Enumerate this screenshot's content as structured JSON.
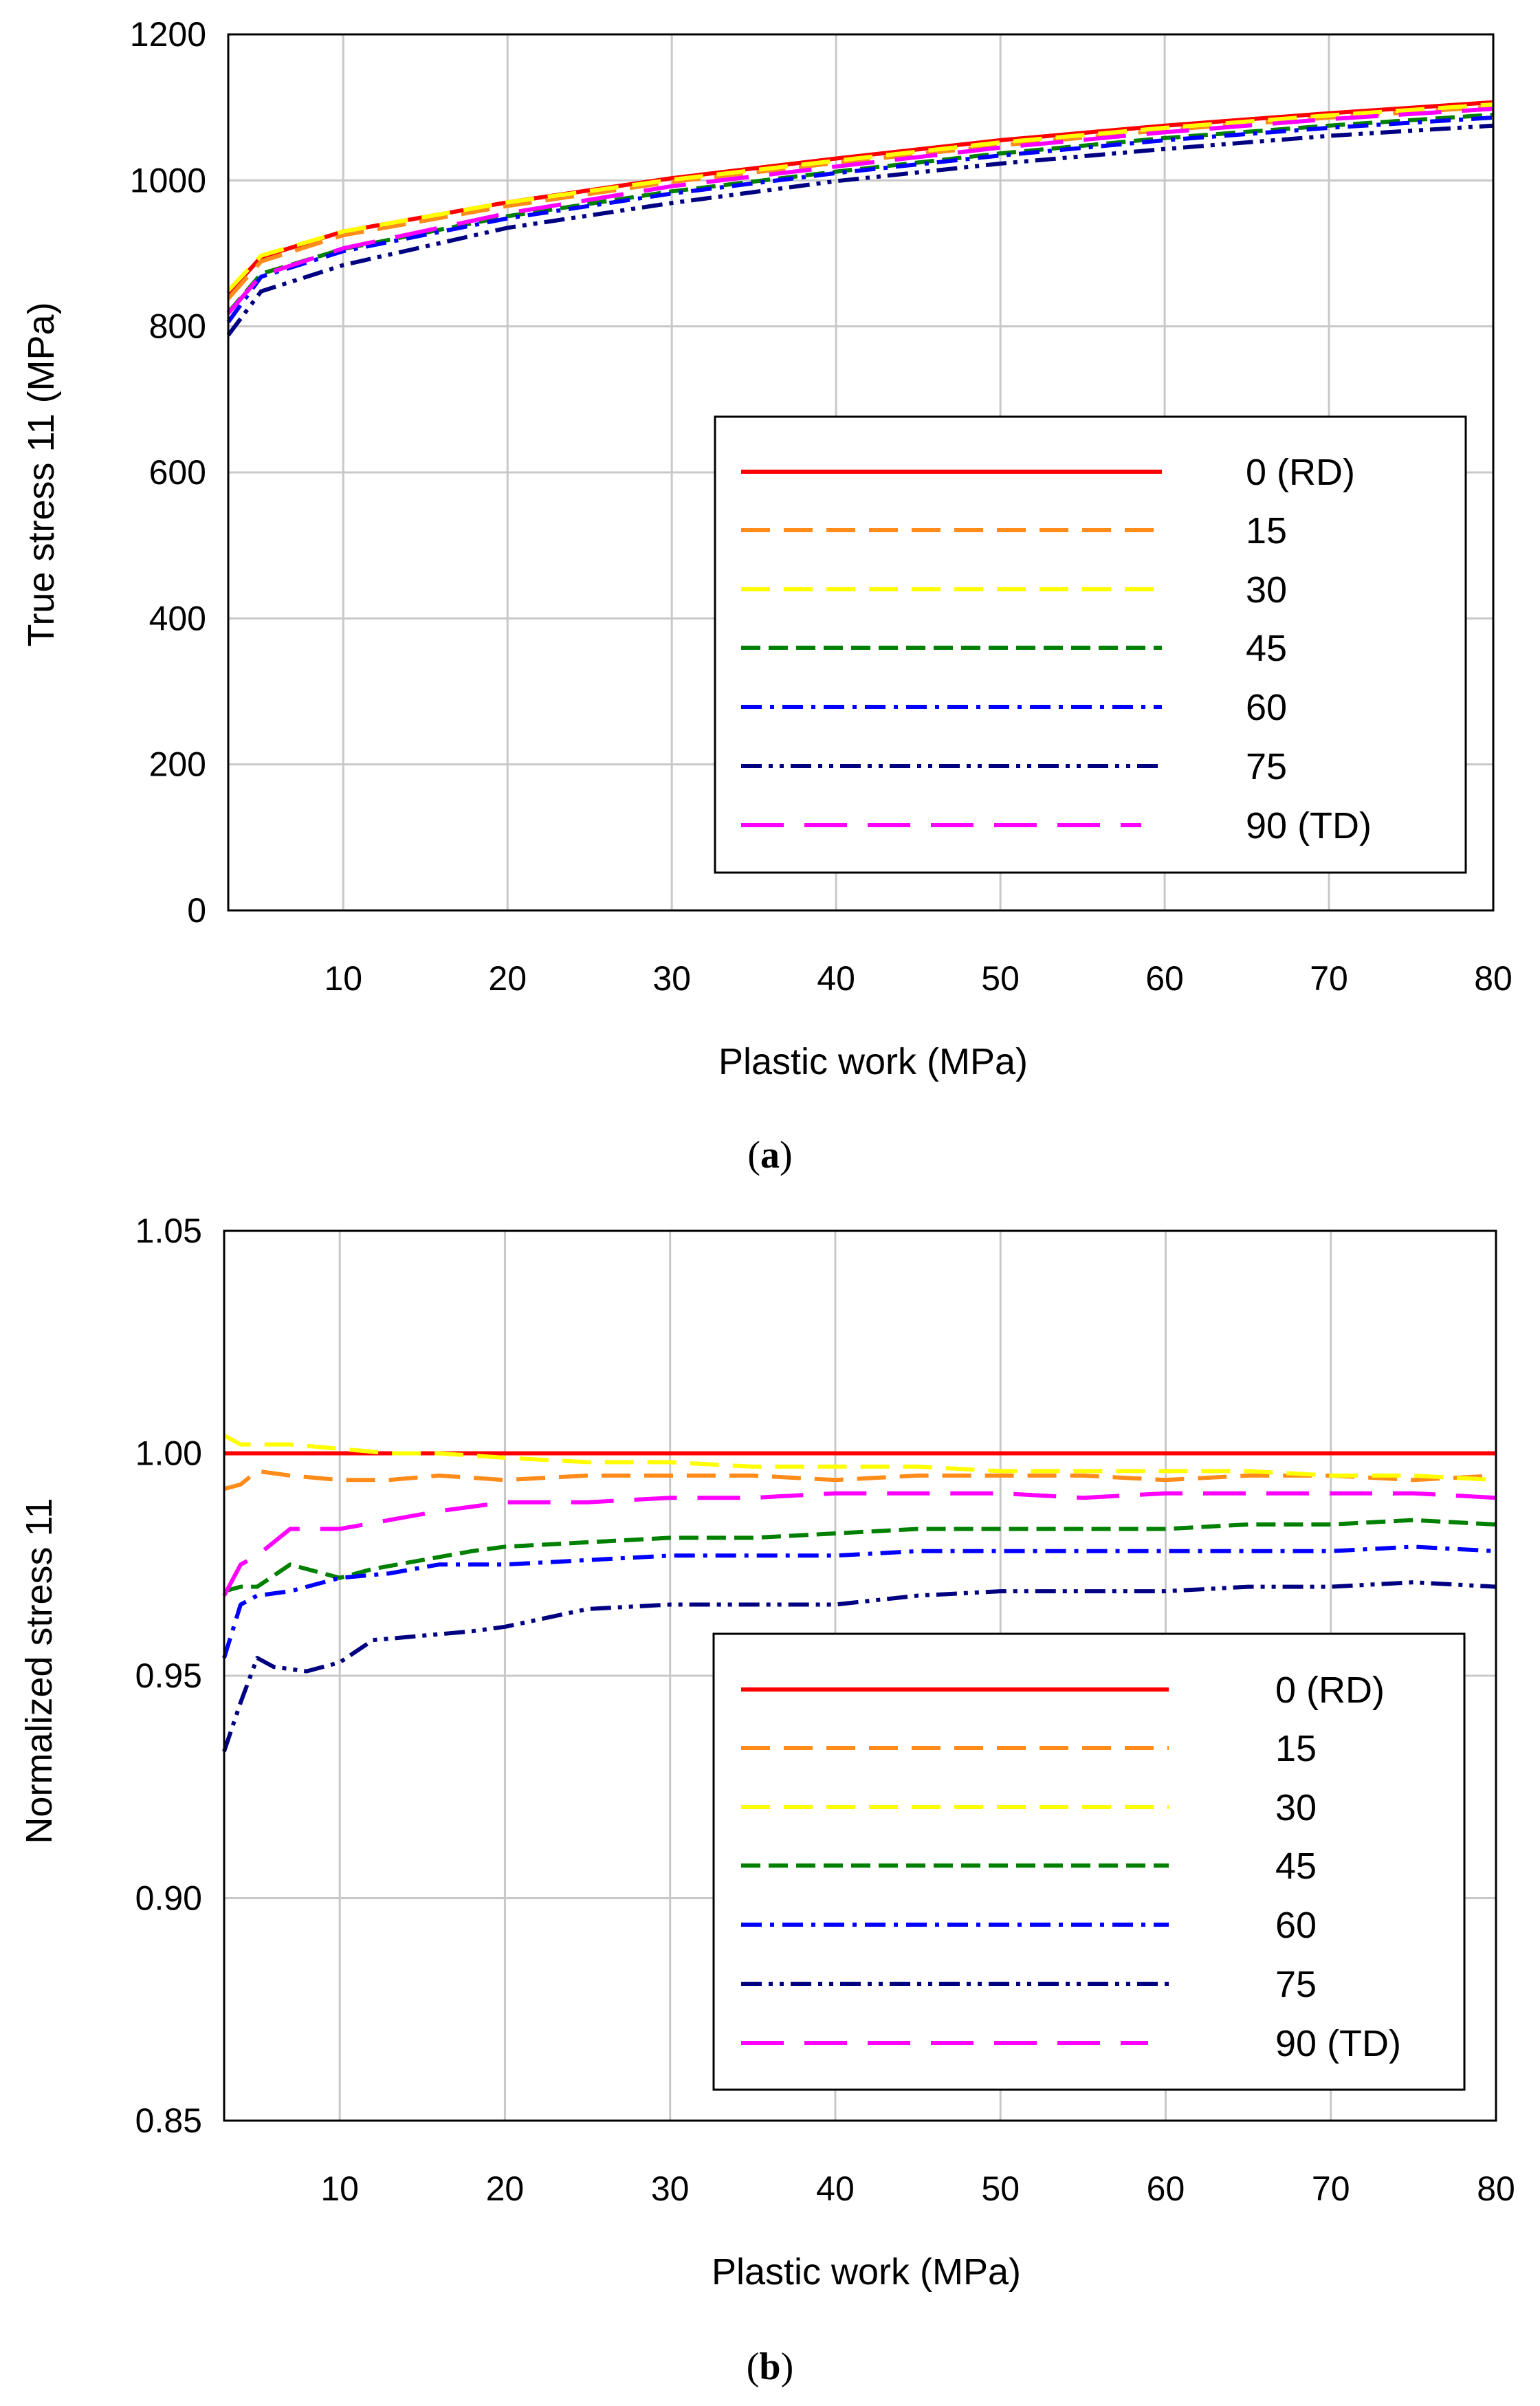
{
  "chart_data": [
    {
      "type": "line",
      "panel": "(a)",
      "panel_letter": "a",
      "xlabel": "Plastic work (MPa)",
      "ylabel": "True stress 11 (MPa)",
      "xlim": [
        3,
        80
      ],
      "ylim": [
        0,
        1200
      ],
      "xticks": [
        10,
        20,
        30,
        40,
        50,
        60,
        70,
        80
      ],
      "yticks": [
        0,
        200,
        400,
        600,
        800,
        1000,
        1200
      ],
      "grid": true,
      "legend_position": "lower-right",
      "series": [
        {
          "name": "0 (RD)",
          "color": "#ff0000",
          "style": "solid",
          "x": [
            3,
            5,
            10,
            20,
            30,
            40,
            50,
            60,
            70,
            80
          ],
          "y": [
            845,
            895,
            930,
            970,
            1003,
            1030,
            1055,
            1075,
            1092,
            1107
          ]
        },
        {
          "name": "15",
          "color": "#ff8c1a",
          "style": "dash",
          "x": [
            3,
            5,
            10,
            20,
            30,
            40,
            50,
            60,
            70,
            80
          ],
          "y": [
            838,
            889,
            925,
            965,
            998,
            1024,
            1048,
            1069,
            1086,
            1101
          ]
        },
        {
          "name": "30",
          "color": "#ffff00",
          "style": "dash",
          "x": [
            3,
            5,
            10,
            20,
            30,
            40,
            50,
            60,
            70,
            80
          ],
          "y": [
            849,
            897,
            930,
            970,
            1001,
            1027,
            1052,
            1072,
            1089,
            1104
          ]
        },
        {
          "name": "45",
          "color": "#008000",
          "style": "dash-short",
          "x": [
            3,
            5,
            10,
            20,
            30,
            40,
            50,
            60,
            70,
            80
          ],
          "y": [
            819,
            872,
            906,
            951,
            985,
            1012,
            1037,
            1058,
            1075,
            1090
          ]
        },
        {
          "name": "60",
          "color": "#0000ff",
          "style": "dashdot",
          "x": [
            3,
            5,
            10,
            20,
            30,
            40,
            50,
            60,
            70,
            80
          ],
          "y": [
            806,
            868,
            903,
            948,
            982,
            1010,
            1034,
            1055,
            1072,
            1086
          ]
        },
        {
          "name": "75",
          "color": "#000080",
          "style": "dashdotdot",
          "x": [
            3,
            5,
            10,
            20,
            30,
            40,
            50,
            60,
            70,
            80
          ],
          "y": [
            788,
            848,
            884,
            935,
            969,
            999,
            1023,
            1043,
            1061,
            1075
          ]
        },
        {
          "name": "90 (TD)",
          "color": "#ff00ff",
          "style": "dash-long",
          "x": [
            3,
            5,
            10,
            20,
            30,
            40,
            50,
            60,
            70,
            80
          ],
          "y": [
            818,
            870,
            907,
            955,
            992,
            1019,
            1045,
            1066,
            1084,
            1098
          ]
        }
      ]
    },
    {
      "type": "line",
      "panel": "(b)",
      "panel_letter": "b",
      "xlabel": "Plastic work (MPa)",
      "ylabel": "Normalized stress 11",
      "xlim": [
        3,
        80
      ],
      "ylim": [
        0.85,
        1.05
      ],
      "xticks": [
        10,
        20,
        30,
        40,
        50,
        60,
        70,
        80
      ],
      "yticks": [
        0.85,
        0.9,
        0.95,
        1.0,
        1.05
      ],
      "ytick_labels": [
        "0.85",
        "0.90",
        "0.95",
        "1.00",
        "1.05"
      ],
      "grid": true,
      "legend_position": "lower-right",
      "series": [
        {
          "name": "0 (RD)",
          "color": "#ff0000",
          "style": "solid",
          "x": [
            3,
            80
          ],
          "y": [
            1.0,
            1.0
          ]
        },
        {
          "name": "15",
          "color": "#ff8c1a",
          "style": "dash",
          "x": [
            3,
            4,
            5,
            7,
            10,
            13,
            16,
            20,
            25,
            30,
            35,
            40,
            45,
            50,
            55,
            60,
            65,
            70,
            75,
            80
          ],
          "y": [
            0.992,
            0.993,
            0.996,
            0.995,
            0.994,
            0.994,
            0.995,
            0.994,
            0.995,
            0.995,
            0.995,
            0.994,
            0.995,
            0.995,
            0.995,
            0.994,
            0.995,
            0.995,
            0.994,
            0.995
          ]
        },
        {
          "name": "30",
          "color": "#ffff00",
          "style": "dash",
          "x": [
            3,
            4,
            5,
            7,
            10,
            13,
            16,
            20,
            25,
            30,
            35,
            40,
            45,
            50,
            55,
            60,
            65,
            70,
            75,
            80
          ],
          "y": [
            1.004,
            1.002,
            1.002,
            1.002,
            1.001,
            1.0,
            1.0,
            0.999,
            0.998,
            0.998,
            0.997,
            0.997,
            0.997,
            0.996,
            0.996,
            0.996,
            0.996,
            0.995,
            0.995,
            0.994
          ]
        },
        {
          "name": "45",
          "color": "#008000",
          "style": "dash-short",
          "x": [
            3,
            4,
            5,
            7,
            9,
            10,
            12,
            15,
            18,
            20,
            25,
            30,
            35,
            40,
            45,
            50,
            55,
            60,
            65,
            70,
            75,
            80
          ],
          "y": [
            0.969,
            0.97,
            0.97,
            0.975,
            0.973,
            0.972,
            0.974,
            0.976,
            0.978,
            0.979,
            0.98,
            0.981,
            0.981,
            0.982,
            0.983,
            0.983,
            0.983,
            0.983,
            0.984,
            0.984,
            0.985,
            0.984
          ]
        },
        {
          "name": "60",
          "color": "#0000ff",
          "style": "dashdot",
          "x": [
            3,
            4,
            5,
            7,
            10,
            13,
            16,
            20,
            25,
            30,
            35,
            40,
            45,
            50,
            55,
            60,
            65,
            70,
            75,
            80
          ],
          "y": [
            0.954,
            0.966,
            0.968,
            0.969,
            0.972,
            0.973,
            0.975,
            0.975,
            0.976,
            0.977,
            0.977,
            0.977,
            0.978,
            0.978,
            0.978,
            0.978,
            0.978,
            0.978,
            0.979,
            0.978
          ]
        },
        {
          "name": "75",
          "color": "#000080",
          "style": "dashdotdot",
          "x": [
            3,
            4,
            5,
            6,
            8,
            10,
            12,
            15,
            18,
            20,
            25,
            30,
            35,
            40,
            45,
            50,
            55,
            60,
            65,
            70,
            75,
            80
          ],
          "y": [
            0.933,
            0.944,
            0.954,
            0.952,
            0.951,
            0.953,
            0.958,
            0.959,
            0.96,
            0.961,
            0.965,
            0.966,
            0.966,
            0.966,
            0.968,
            0.969,
            0.969,
            0.969,
            0.97,
            0.97,
            0.971,
            0.97
          ]
        },
        {
          "name": "90 (TD)",
          "color": "#ff00ff",
          "style": "dash-long",
          "x": [
            3,
            4,
            5,
            7,
            8,
            10,
            13,
            16,
            20,
            25,
            30,
            35,
            40,
            45,
            50,
            55,
            60,
            65,
            70,
            75,
            80
          ],
          "y": [
            0.968,
            0.975,
            0.977,
            0.983,
            0.983,
            0.983,
            0.985,
            0.987,
            0.989,
            0.989,
            0.99,
            0.99,
            0.991,
            0.991,
            0.991,
            0.99,
            0.991,
            0.991,
            0.991,
            0.991,
            0.99
          ]
        }
      ]
    }
  ]
}
